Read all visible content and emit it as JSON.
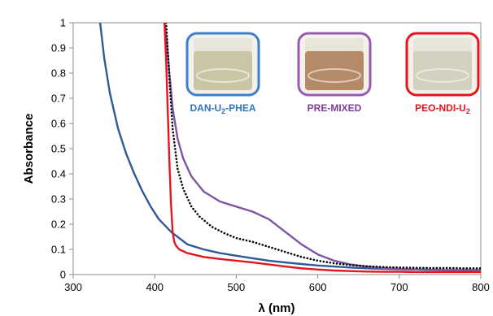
{
  "chart_data": {
    "type": "line",
    "title": "",
    "xlabel": "λ (nm)",
    "ylabel": "Absorbance",
    "xlim": [
      300,
      800
    ],
    "ylim": [
      0,
      1
    ],
    "xticks": [
      "300",
      "400",
      "500",
      "600",
      "700",
      "800"
    ],
    "yticks": [
      "0",
      "0.1",
      "0.2",
      "0.3",
      "0.4",
      "0.5",
      "0.6",
      "0.7",
      "0.8",
      "0.9",
      "1"
    ],
    "grid": false,
    "legend": "none",
    "series": [
      {
        "name": "DAN-U2-PHEA",
        "color": "#2e5a9a",
        "style": "solid",
        "x": [
          333,
          338,
          345,
          355,
          365,
          375,
          385,
          395,
          405,
          420,
          440,
          460,
          480,
          500,
          520,
          540,
          560,
          580,
          600,
          620,
          640,
          660,
          680,
          700,
          720,
          740,
          760,
          780,
          800
        ],
        "y": [
          1.0,
          0.86,
          0.72,
          0.58,
          0.48,
          0.4,
          0.33,
          0.27,
          0.22,
          0.17,
          0.12,
          0.1,
          0.085,
          0.075,
          0.065,
          0.055,
          0.048,
          0.042,
          0.036,
          0.032,
          0.028,
          0.025,
          0.023,
          0.021,
          0.02,
          0.019,
          0.018,
          0.018,
          0.017
        ]
      },
      {
        "name": "PRE-MIXED",
        "color": "#7d56a3",
        "style": "solid",
        "x": [
          412,
          415,
          418,
          422,
          428,
          435,
          445,
          460,
          480,
          500,
          520,
          540,
          560,
          580,
          600,
          620,
          640,
          660,
          680,
          700,
          720,
          740,
          760,
          780,
          800
        ],
        "y": [
          1.0,
          0.92,
          0.8,
          0.66,
          0.54,
          0.46,
          0.39,
          0.33,
          0.29,
          0.27,
          0.25,
          0.22,
          0.17,
          0.12,
          0.08,
          0.055,
          0.04,
          0.032,
          0.026,
          0.022,
          0.02,
          0.018,
          0.017,
          0.016,
          0.015
        ]
      },
      {
        "name": "dotted",
        "color": "#000000",
        "style": "dotted",
        "x": [
          414,
          418,
          422,
          428,
          435,
          445,
          455,
          470,
          485,
          500,
          520,
          540,
          560,
          580,
          600,
          620,
          640,
          660,
          680,
          700,
          720,
          740,
          760,
          780,
          800
        ],
        "y": [
          1.0,
          0.78,
          0.58,
          0.42,
          0.34,
          0.27,
          0.23,
          0.19,
          0.165,
          0.145,
          0.13,
          0.11,
          0.09,
          0.07,
          0.055,
          0.045,
          0.038,
          0.033,
          0.03,
          0.028,
          0.027,
          0.026,
          0.026,
          0.025,
          0.025
        ]
      },
      {
        "name": "PEO-NDI-U2",
        "color": "#e8141c",
        "style": "solid",
        "x": [
          412,
          414,
          416,
          418,
          420,
          422,
          424,
          426,
          430,
          440,
          460,
          480,
          500,
          520,
          540,
          560,
          580,
          600,
          620,
          640,
          660,
          680,
          700,
          720,
          740,
          760,
          780,
          800
        ],
        "y": [
          1.0,
          0.85,
          0.65,
          0.45,
          0.28,
          0.17,
          0.13,
          0.115,
          0.1,
          0.085,
          0.07,
          0.062,
          0.055,
          0.048,
          0.04,
          0.032,
          0.025,
          0.02,
          0.016,
          0.014,
          0.012,
          0.011,
          0.011,
          0.01,
          0.01,
          0.01,
          0.01,
          0.01
        ]
      }
    ],
    "insets": [
      {
        "label": "DAN-U2-PHEA",
        "label_main": "DAN-U",
        "label_sub": "2",
        "label_rest": "-PHEA",
        "label_color": "#2e75b6",
        "frame_color": "#3a7fd0",
        "liquid_color": "#c9c6a6"
      },
      {
        "label": "PRE-MIXED",
        "label_main": "PRE-MIXED",
        "label_sub": "",
        "label_rest": "",
        "label_color": "#7d3c98",
        "frame_color": "#9b59b6",
        "liquid_color": "#b58a68"
      },
      {
        "label": "PEO-NDI-U2",
        "label_main": "PEO-NDI-U",
        "label_sub": "2",
        "label_rest": "",
        "label_color": "#e8141c",
        "frame_color": "#e8141c",
        "liquid_color": "#d3d1bf"
      }
    ]
  }
}
